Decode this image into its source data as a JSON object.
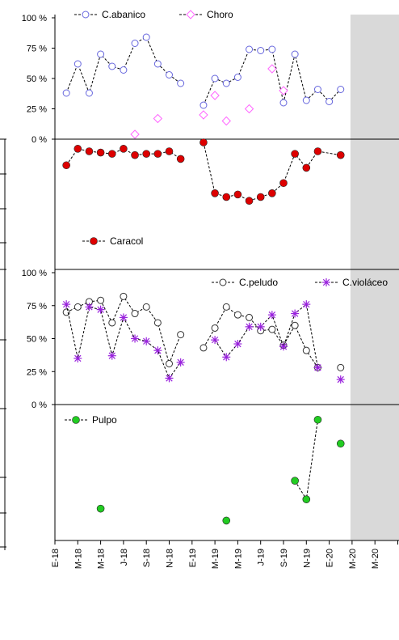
{
  "chart_data": [
    {
      "type": "line",
      "ylabel": "",
      "ylim": [
        0,
        100
      ],
      "yticks": [
        "0 %",
        "25 %",
        "50 %",
        "75 %",
        "100 %"
      ],
      "legend": "top-left",
      "shaded_region_from": "M-20",
      "series": [
        {
          "name": "C.abanico",
          "color": "#6666dd",
          "marker": "circle-open",
          "points": [
            [
              0.5,
              38
            ],
            [
              1,
              62
            ],
            [
              1.5,
              38
            ],
            [
              2,
              70
            ],
            [
              2.5,
              60
            ],
            [
              3,
              57
            ],
            [
              3.5,
              79
            ],
            [
              4,
              84
            ],
            [
              4.5,
              62
            ],
            [
              5,
              53
            ],
            [
              5.5,
              46
            ],
            [
              null,
              null
            ],
            [
              6.5,
              28
            ],
            [
              7,
              50
            ],
            [
              7.5,
              46
            ],
            [
              8,
              51
            ],
            [
              8.5,
              74
            ],
            [
              9,
              73
            ],
            [
              9.5,
              74
            ],
            [
              10,
              30
            ],
            [
              10.5,
              70
            ],
            [
              11,
              32
            ],
            [
              11.5,
              41
            ],
            [
              12,
              31
            ],
            [
              12.5,
              41
            ]
          ]
        },
        {
          "name": "Choro",
          "color": "#ff66ff",
          "marker": "diamond-open",
          "nolines": true,
          "points": [
            [
              3.5,
              4
            ],
            [
              4.5,
              17
            ],
            [
              6.5,
              20
            ],
            [
              7,
              36
            ],
            [
              7.5,
              15
            ],
            [
              8.5,
              25
            ],
            [
              9.5,
              58
            ],
            [
              10,
              40
            ]
          ]
        }
      ]
    },
    {
      "type": "line",
      "ylim": [
        0,
        100
      ],
      "legend": "bottom-left",
      "series": [
        {
          "name": "Caracol",
          "color": "#dd0000",
          "marker": "circle-filled",
          "points": [
            [
              0.5,
              82
            ],
            [
              1,
              95
            ],
            [
              1.5,
              93
            ],
            [
              2,
              92
            ],
            [
              2.5,
              91
            ],
            [
              3,
              95
            ],
            [
              3.5,
              90
            ],
            [
              4,
              91
            ],
            [
              4.5,
              91
            ],
            [
              5,
              93
            ],
            [
              5.5,
              87
            ],
            [
              null,
              null
            ],
            [
              6.5,
              100
            ],
            [
              7,
              60
            ],
            [
              7.5,
              57
            ],
            [
              8,
              59
            ],
            [
              8.5,
              54
            ],
            [
              9,
              57
            ],
            [
              9.5,
              60
            ],
            [
              10,
              68
            ],
            [
              10.5,
              91
            ],
            [
              11,
              80
            ],
            [
              11.5,
              93
            ],
            [
              12.5,
              90
            ]
          ]
        }
      ]
    },
    {
      "type": "line",
      "ylim": [
        0,
        100
      ],
      "yticks": [
        "0 %",
        "25 %",
        "50 %",
        "75 %",
        "100 %"
      ],
      "legend": "top-right",
      "series": [
        {
          "name": "C.peludo",
          "color": "#333333",
          "marker": "circle-open",
          "points": [
            [
              0.5,
              70
            ],
            [
              1,
              74
            ],
            [
              1.5,
              78
            ],
            [
              2,
              79
            ],
            [
              2.5,
              62
            ],
            [
              3,
              82
            ],
            [
              3.5,
              69
            ],
            [
              4,
              74
            ],
            [
              4.5,
              62
            ],
            [
              5,
              31
            ],
            [
              5.5,
              53
            ],
            [
              null,
              null
            ],
            [
              6.5,
              43
            ],
            [
              7,
              58
            ],
            [
              7.5,
              74
            ],
            [
              8,
              68
            ],
            [
              8.5,
              66
            ],
            [
              9,
              56
            ],
            [
              9.5,
              57
            ],
            [
              10,
              45
            ],
            [
              10.5,
              60
            ],
            [
              11,
              41
            ],
            [
              11.5,
              28
            ],
            [
              null,
              null
            ],
            [
              12.5,
              28
            ]
          ]
        },
        {
          "name": "C.violáceo",
          "color": "#9922dd",
          "marker": "star",
          "points": [
            [
              0.5,
              76
            ],
            [
              1,
              35
            ],
            [
              1.5,
              74
            ],
            [
              2,
              72
            ],
            [
              2.5,
              37
            ],
            [
              3,
              66
            ],
            [
              3.5,
              50
            ],
            [
              4,
              48
            ],
            [
              4.5,
              41
            ],
            [
              5,
              20
            ],
            [
              5.5,
              32
            ],
            [
              null,
              null
            ],
            [
              7,
              49
            ],
            [
              7.5,
              36
            ],
            [
              8,
              46
            ],
            [
              8.5,
              59
            ],
            [
              9,
              59
            ],
            [
              9.5,
              68
            ],
            [
              10,
              44
            ],
            [
              10.5,
              69
            ],
            [
              11,
              76
            ],
            [
              11.5,
              28
            ],
            [
              null,
              null
            ],
            [
              12.5,
              19
            ]
          ]
        }
      ]
    },
    {
      "type": "line",
      "ylim": [
        0,
        100
      ],
      "legend": "top-left",
      "series": [
        {
          "name": "Pulpo",
          "color": "#22cc22",
          "marker": "circle-filled",
          "points": [
            [
              2,
              24
            ],
            [
              null,
              null
            ],
            [
              7.5,
              15
            ],
            [
              null,
              null
            ],
            [
              10.5,
              45
            ],
            [
              11,
              31
            ],
            [
              11.5,
              91
            ],
            [
              null,
              null
            ],
            [
              12.5,
              73
            ]
          ]
        }
      ]
    }
  ],
  "x_axis": {
    "categories": [
      "E-18",
      "M-18",
      "M-18",
      "J-18",
      "S-18",
      "N-18",
      "E-19",
      "M-19",
      "M-19",
      "J-19",
      "S-19",
      "N-19",
      "E-20",
      "M-20",
      "M-20"
    ]
  }
}
